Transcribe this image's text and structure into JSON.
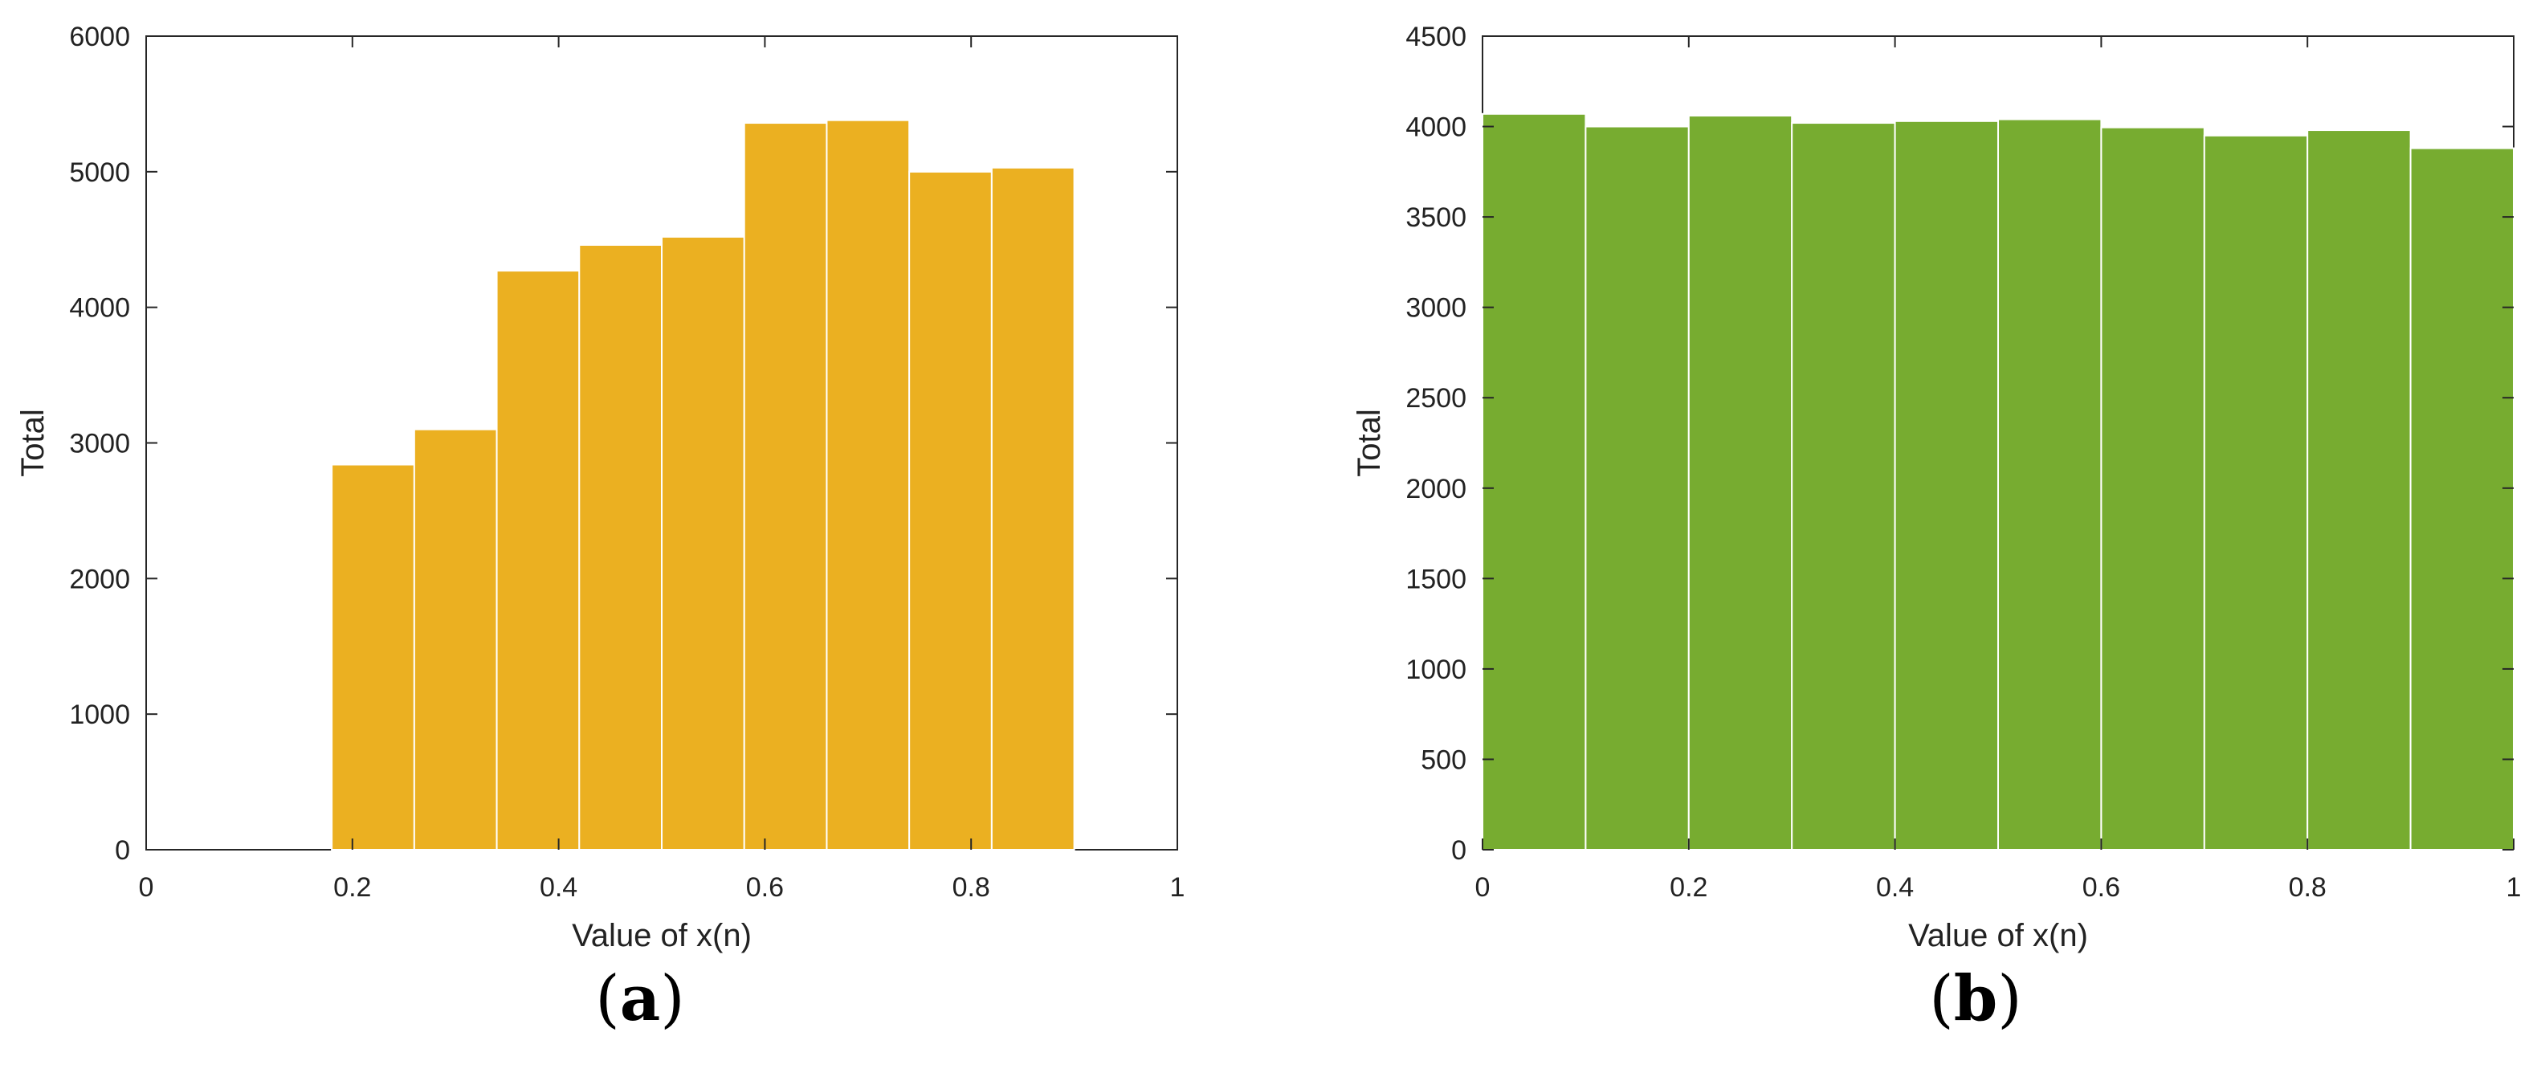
{
  "chart_data": [
    {
      "type": "bar",
      "panel_label": "a",
      "xlabel": "Value of x(n)",
      "ylabel": "Total",
      "xlim": [
        0,
        1
      ],
      "ylim": [
        0,
        6000
      ],
      "xticks": [
        "0",
        "0.2",
        "0.4",
        "0.6",
        "0.8",
        "1"
      ],
      "yticks": [
        "0",
        "1000",
        "2000",
        "3000",
        "4000",
        "5000",
        "6000"
      ],
      "bin_edges": [
        0.18,
        0.26,
        0.34,
        0.42,
        0.5,
        0.58,
        0.66,
        0.74,
        0.82,
        0.9
      ],
      "values": [
        2840,
        3100,
        4270,
        4460,
        4520,
        5360,
        5380,
        5000,
        5030
      ],
      "color": "#EBB021",
      "grid": false
    },
    {
      "type": "bar",
      "panel_label": "b",
      "xlabel": "Value of x(n)",
      "ylabel": "Total",
      "xlim": [
        0,
        1
      ],
      "ylim": [
        0,
        4500
      ],
      "xticks": [
        "0",
        "0.2",
        "0.4",
        "0.6",
        "0.8",
        "1"
      ],
      "yticks": [
        "0",
        "500",
        "1000",
        "1500",
        "2000",
        "2500",
        "3000",
        "3500",
        "4000",
        "4500"
      ],
      "bin_edges": [
        0,
        0.1,
        0.2,
        0.3,
        0.4,
        0.5,
        0.6,
        0.7,
        0.8,
        0.9,
        1.0
      ],
      "values": [
        4070,
        4000,
        4060,
        4020,
        4030,
        4040,
        3995,
        3950,
        3980,
        3880
      ],
      "color": "#77AC30",
      "grid": false
    }
  ]
}
